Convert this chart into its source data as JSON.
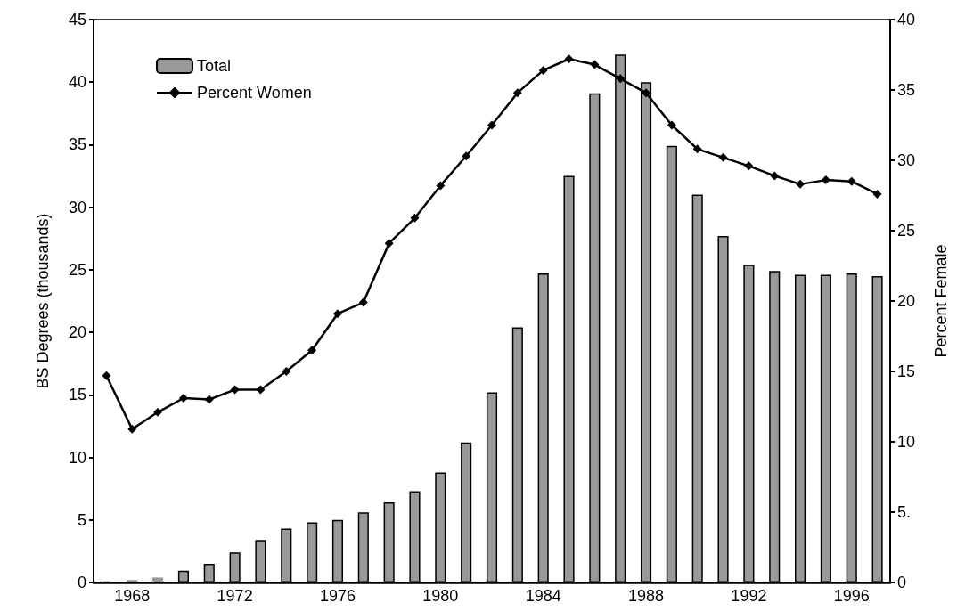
{
  "chart_data": {
    "type": "bar",
    "ylabel": "BS Degrees (thousands)",
    "y2label": "Percent Female",
    "categories": [
      null,
      "1968",
      null,
      null,
      null,
      "1972",
      null,
      null,
      null,
      "1976",
      null,
      null,
      null,
      "1980",
      null,
      null,
      null,
      "1984",
      null,
      null,
      null,
      "1988",
      null,
      null,
      null,
      "1992",
      null,
      null,
      null,
      "1996",
      null
    ],
    "series": [
      {
        "name": "Total",
        "color": "#999999",
        "values": [
          0.1,
          0.2,
          0.4,
          0.95,
          1.5,
          2.4,
          3.4,
          4.3,
          4.8,
          5.0,
          5.6,
          6.4,
          7.3,
          8.8,
          11.2,
          15.2,
          20.4,
          24.7,
          32.5,
          39.1,
          42.2,
          40.0,
          34.9,
          31.0,
          27.7,
          25.4,
          24.9,
          24.6,
          24.6,
          24.7,
          24.5
        ]
      },
      {
        "name": "Percent Women",
        "type": "line",
        "axis": "y2",
        "color": "#000000",
        "marker": "diamond",
        "values": [
          14.7,
          10.9,
          12.1,
          13.1,
          13.0,
          13.7,
          13.7,
          15.0,
          16.5,
          19.1,
          19.9,
          24.1,
          25.9,
          28.2,
          30.3,
          32.5,
          34.8,
          36.4,
          37.2,
          36.8,
          35.8,
          34.8,
          32.5,
          30.8,
          30.2,
          29.6,
          28.9,
          28.3,
          28.6,
          28.5,
          27.6
        ]
      }
    ],
    "ylim": [
      0,
      45
    ],
    "yticks": [
      0,
      5,
      10,
      15,
      20,
      25,
      30,
      35,
      40,
      45
    ],
    "y2lim": [
      0,
      40
    ],
    "y2ticks": [
      0,
      {
        "value": 5,
        "label": "5."
      },
      10,
      15,
      20,
      25,
      30,
      35,
      40
    ],
    "grid": false,
    "legend": "top left"
  }
}
